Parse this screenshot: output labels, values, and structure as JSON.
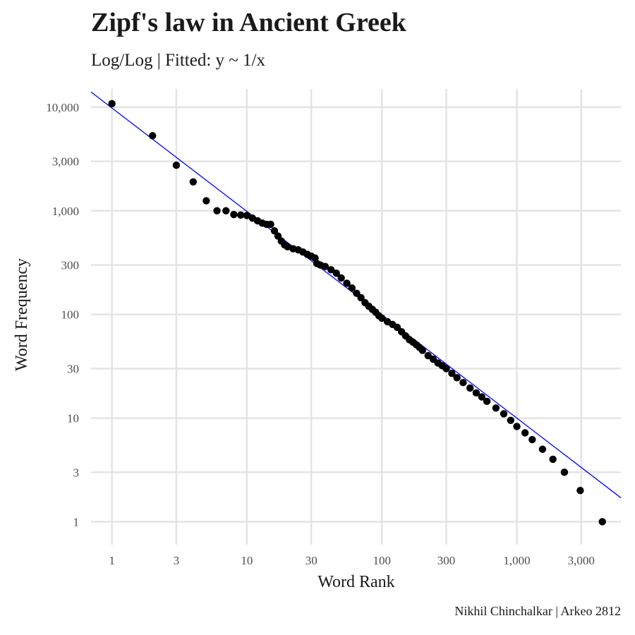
{
  "header": {
    "title": "Zipf's law in Ancient Greek",
    "subtitle": "Log/Log | Fitted: y ~ 1/x"
  },
  "caption": "Nikhil Chinchalkar | Arkeo 2812",
  "colors": {
    "points": "#000000",
    "fit_line": "#0000ff",
    "grid": "#e3e3e3",
    "background": "#ffffff"
  },
  "chart_data": {
    "type": "scatter",
    "title": "Zipf's law in Ancient Greek",
    "subtitle": "Log/Log | Fitted: y ~ 1/x",
    "xlabel": "Word Rank",
    "ylabel": "Word Frequency",
    "x_scale": "log10",
    "y_scale": "log10",
    "x_ticks": [
      1,
      3,
      10,
      30,
      100,
      300,
      1000,
      3000
    ],
    "x_tick_labels": [
      "1",
      "3",
      "10",
      "30",
      "100",
      "300",
      "1,000",
      "3,000"
    ],
    "y_ticks": [
      1,
      3,
      10,
      30,
      100,
      300,
      1000,
      3000,
      10000
    ],
    "y_tick_labels": [
      "1",
      "3",
      "10",
      "30",
      "100",
      "300",
      "1,000",
      "3,000",
      "10,000"
    ],
    "xlim": [
      0.7,
      5900
    ],
    "ylim": [
      0.6,
      15000
    ],
    "grid": true,
    "legend": "none",
    "fit_line": {
      "formula": "y ~ 1/x",
      "points": [
        [
          0.7,
          14000
        ],
        [
          5900,
          1.7
        ]
      ]
    },
    "points": [
      [
        1,
        10800
      ],
      [
        2,
        5300
      ],
      [
        3,
        2750
      ],
      [
        4,
        1900
      ],
      [
        5,
        1250
      ],
      [
        6,
        1000
      ],
      [
        7,
        1000
      ],
      [
        8,
        920
      ],
      [
        9,
        910
      ],
      [
        10,
        900
      ],
      [
        11,
        850
      ],
      [
        12,
        800
      ],
      [
        13,
        760
      ],
      [
        14,
        740
      ],
      [
        15,
        740
      ],
      [
        16,
        640
      ],
      [
        17,
        570
      ],
      [
        18,
        510
      ],
      [
        19,
        470
      ],
      [
        20,
        450
      ],
      [
        22,
        430
      ],
      [
        24,
        420
      ],
      [
        26,
        400
      ],
      [
        28,
        380
      ],
      [
        30,
        365
      ],
      [
        32,
        350
      ],
      [
        33,
        310
      ],
      [
        35,
        300
      ],
      [
        38,
        290
      ],
      [
        42,
        270
      ],
      [
        46,
        250
      ],
      [
        50,
        225
      ],
      [
        55,
        200
      ],
      [
        60,
        180
      ],
      [
        65,
        160
      ],
      [
        70,
        145
      ],
      [
        75,
        130
      ],
      [
        80,
        120
      ],
      [
        85,
        112
      ],
      [
        90,
        105
      ],
      [
        95,
        97
      ],
      [
        100,
        92
      ],
      [
        110,
        85
      ],
      [
        120,
        80
      ],
      [
        130,
        75
      ],
      [
        140,
        68
      ],
      [
        150,
        62
      ],
      [
        160,
        57
      ],
      [
        170,
        54
      ],
      [
        180,
        51
      ],
      [
        190,
        48
      ],
      [
        200,
        45
      ],
      [
        220,
        40
      ],
      [
        240,
        37
      ],
      [
        260,
        34
      ],
      [
        280,
        32
      ],
      [
        300,
        30
      ],
      [
        330,
        27
      ],
      [
        360,
        24.5
      ],
      [
        400,
        22
      ],
      [
        450,
        19.5
      ],
      [
        500,
        17.5
      ],
      [
        550,
        16
      ],
      [
        600,
        14.5
      ],
      [
        700,
        12.5
      ],
      [
        800,
        11
      ],
      [
        900,
        9.5
      ],
      [
        1000,
        8.3
      ],
      [
        1150,
        7.2
      ],
      [
        1300,
        6.2
      ],
      [
        1550,
        5
      ],
      [
        1850,
        4
      ],
      [
        2250,
        3
      ],
      [
        2950,
        2
      ],
      [
        4300,
        1
      ]
    ]
  }
}
